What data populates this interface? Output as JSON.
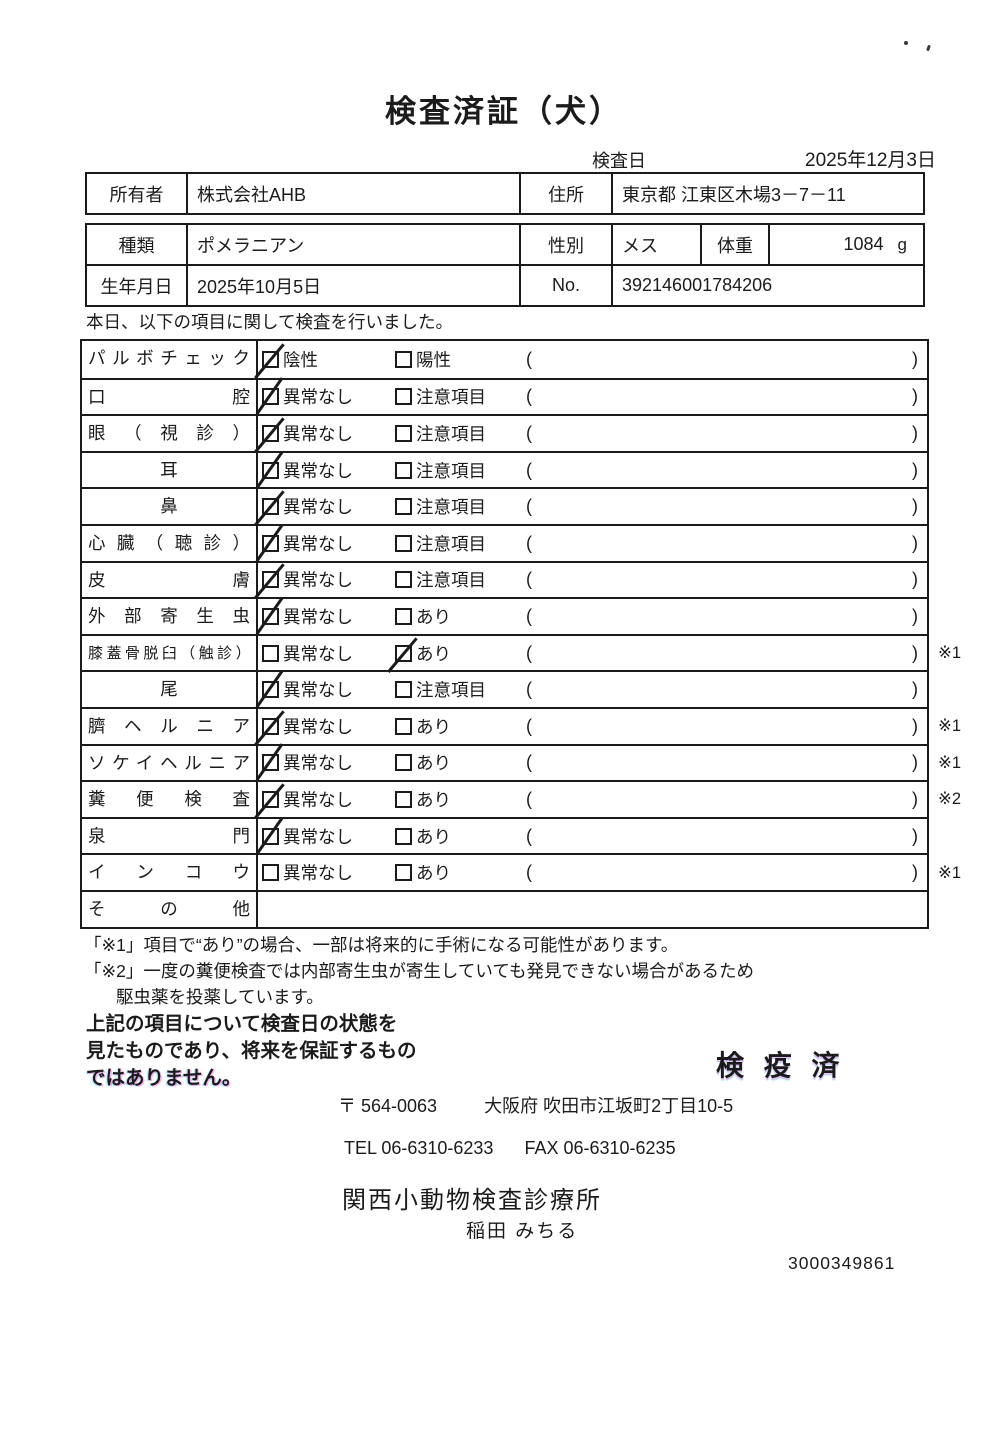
{
  "title": "検査済証（犬）",
  "inspection_date": {
    "label": "検査日",
    "value": "2025年12月3日"
  },
  "owner_table": {
    "owner_label": "所有者",
    "owner_value": "株式会社AHB",
    "address_label": "住所",
    "address_value": "東京都 江東区木場3－7－11"
  },
  "info_table": {
    "breed_label": "種類",
    "breed_value": "ポメラニアン",
    "sex_label": "性別",
    "sex_value": "メス",
    "weight_label": "体重",
    "weight_value": "1084",
    "weight_unit": "g",
    "birth_label": "生年月日",
    "birth_value": "2025年10月5日",
    "no_label": "No.",
    "no_value": "392146001784206"
  },
  "intro": "本日、以下の項目に関して検査を行いました。",
  "checklist": {
    "paren_open": "(",
    "paren_close": ")",
    "rows": [
      {
        "label": "パルボチェック",
        "align": "justify",
        "opt1": "陰性",
        "opt2": "陽性",
        "checked": "opt1",
        "note": ""
      },
      {
        "label": "口腔",
        "align": "justify",
        "opt1": "異常なし",
        "opt2": "注意項目",
        "checked": "opt1",
        "note": ""
      },
      {
        "label": "眼（視診）",
        "align": "justify",
        "opt1": "異常なし",
        "opt2": "注意項目",
        "checked": "opt1",
        "note": ""
      },
      {
        "label": "耳",
        "align": "center",
        "opt1": "異常なし",
        "opt2": "注意項目",
        "checked": "opt1",
        "note": ""
      },
      {
        "label": "鼻",
        "align": "center",
        "opt1": "異常なし",
        "opt2": "注意項目",
        "checked": "opt1",
        "note": ""
      },
      {
        "label": "心臓（聴診）",
        "align": "justify",
        "opt1": "異常なし",
        "opt2": "注意項目",
        "checked": "opt1",
        "note": ""
      },
      {
        "label": "皮膚",
        "align": "justify",
        "opt1": "異常なし",
        "opt2": "注意項目",
        "checked": "opt1",
        "note": ""
      },
      {
        "label": "外部寄生虫",
        "align": "justify",
        "opt1": "異常なし",
        "opt2": "あり",
        "checked": "opt1",
        "note": ""
      },
      {
        "label": "膝蓋骨脱臼（触診）",
        "align": "justify",
        "small": true,
        "opt1": "異常なし",
        "opt2": "あり",
        "checked": "opt2",
        "note": "※1"
      },
      {
        "label": "尾",
        "align": "center",
        "opt1": "異常なし",
        "opt2": "注意項目",
        "checked": "opt1",
        "note": ""
      },
      {
        "label": "臍ヘルニア",
        "align": "justify",
        "opt1": "異常なし",
        "opt2": "あり",
        "checked": "opt1",
        "note": "※1"
      },
      {
        "label": "ソケイヘルニア",
        "align": "justify",
        "opt1": "異常なし",
        "opt2": "あり",
        "checked": "opt1",
        "note": "※1"
      },
      {
        "label": "糞便検査",
        "align": "justify",
        "opt1": "異常なし",
        "opt2": "あり",
        "checked": "opt1",
        "note": "※2"
      },
      {
        "label": "泉門",
        "align": "justify",
        "opt1": "異常なし",
        "opt2": "あり",
        "checked": "opt1",
        "note": ""
      },
      {
        "label": "インコウ",
        "align": "justify",
        "opt1": "異常なし",
        "opt2": "あり",
        "checked": "none",
        "note": "※1"
      },
      {
        "label": "その他",
        "align": "justify",
        "opt1": null,
        "opt2": null,
        "checked": "none",
        "note": ""
      }
    ]
  },
  "notes": [
    "「※1」項目で“あり”の場合、一部は将来的に手術になる可能性があります。",
    "「※2」一度の糞便検査では内部寄生虫が寄生していても発見できない場合があるため",
    "駆虫薬を投薬しています。"
  ],
  "disclaimer": [
    "上記の項目について検査日の状態を",
    "見たものであり、将来を保証するもの",
    "ではありません。"
  ],
  "stamp": "検 疫 済",
  "clinic": {
    "postal": "〒 564-0063",
    "address": "大阪府 吹田市江坂町2丁目10-5",
    "tel": "TEL 06-6310-6233",
    "fax": "FAX 06-6310-6235",
    "name": "関西小動物検査診療所",
    "vet": "稲田 みちる"
  },
  "serial": "3000349861",
  "colors": {
    "ink": "#1b1b1b",
    "paper": "#ffffff",
    "stamp_fringe": "#ff3cc8"
  }
}
